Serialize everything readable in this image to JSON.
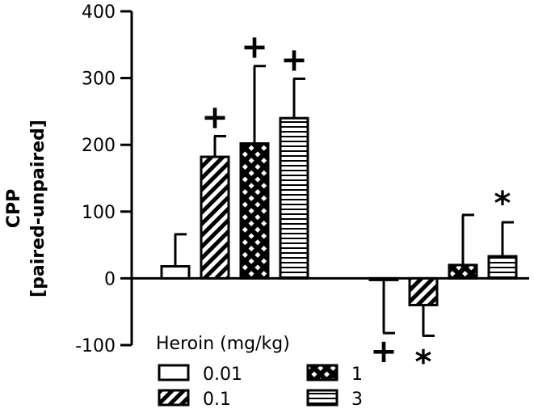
{
  "chart_data": {
    "type": "bar",
    "title": "",
    "xlabel": "",
    "ylabel": [
      "CPP",
      "[paired-unpaired]"
    ],
    "ylim": [
      -100,
      400
    ],
    "yticks": [
      -100,
      0,
      100,
      200,
      300,
      400
    ],
    "ytick_labels": [
      "-100",
      "0",
      "100",
      "200",
      "300",
      "400"
    ],
    "grid": false,
    "legend_placement": "bottom-center",
    "legend_title": "Heroin (mg/kg)",
    "groups": [
      {
        "bars": [
          {
            "dose": "0.01",
            "value": 18,
            "error": 48,
            "significance": ""
          },
          {
            "dose": "0.1",
            "value": 182,
            "error": 31,
            "significance": "+"
          },
          {
            "dose": "1",
            "value": 202,
            "error": 116,
            "significance": "+"
          },
          {
            "dose": "3",
            "value": 240,
            "error": 59,
            "significance": "+"
          }
        ]
      },
      {
        "bars": [
          {
            "dose": "0.01",
            "value": -2,
            "error": 80,
            "significance": "+"
          },
          {
            "dose": "0.1",
            "value": -40,
            "error": 46,
            "significance": "*"
          },
          {
            "dose": "1",
            "value": 20,
            "error": 75,
            "significance": ""
          },
          {
            "dose": "3",
            "value": 33,
            "error": 51,
            "significance": "*"
          }
        ]
      }
    ],
    "series": [
      {
        "name": "0.01",
        "pattern": "open"
      },
      {
        "name": "0.1",
        "pattern": "diagonal-stripes"
      },
      {
        "name": "1",
        "pattern": "crosshatch"
      },
      {
        "name": "3",
        "pattern": "horizontal-stripes"
      }
    ]
  }
}
